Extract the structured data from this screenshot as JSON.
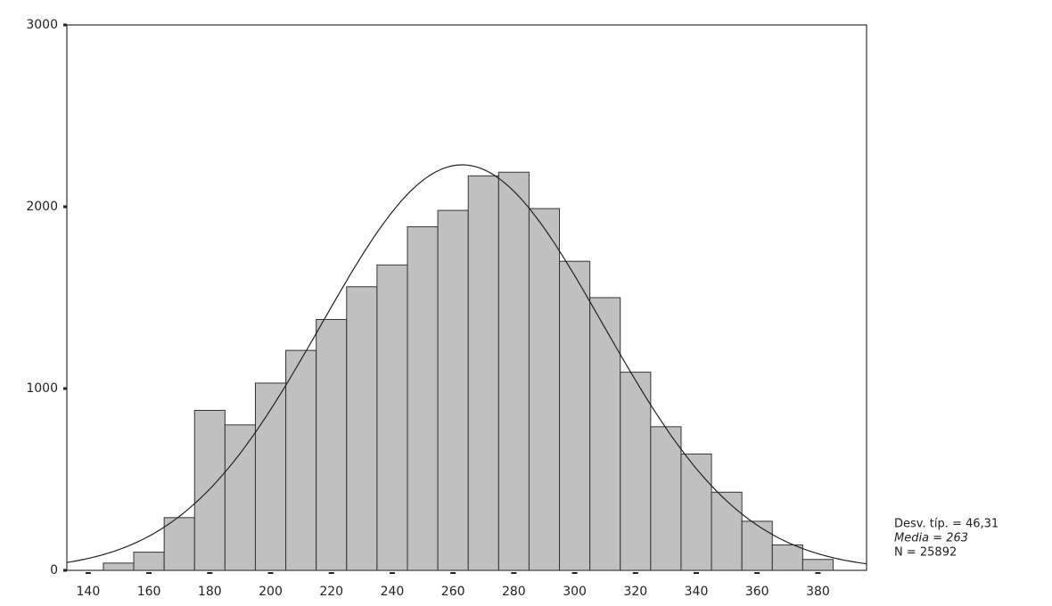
{
  "chart_data": {
    "type": "histogram",
    "bins": [
      145,
      155,
      165,
      175,
      185,
      195,
      205,
      215,
      225,
      235,
      245,
      255,
      265,
      275,
      285,
      295,
      305,
      315,
      325,
      335,
      345,
      355,
      365,
      375,
      385
    ],
    "values": [
      40,
      100,
      290,
      880,
      800,
      1030,
      1210,
      1380,
      1560,
      1680,
      1890,
      1980,
      2170,
      2190,
      1990,
      1700,
      1500,
      1090,
      790,
      640,
      430,
      270,
      140,
      60
    ],
    "color": "#c0c0c0",
    "xlim": [
      133,
      396
    ],
    "xticks": [
      140,
      160,
      180,
      200,
      220,
      240,
      260,
      280,
      300,
      320,
      340,
      360,
      380
    ],
    "ylim": [
      0,
      3000
    ],
    "yticks": [
      0,
      1000,
      2000,
      3000
    ],
    "normal_curve": true,
    "stats": [
      {
        "text": "Desv. típ. = 46,31",
        "value": 46.31
      },
      {
        "text": "Media = 263",
        "value": 263
      },
      {
        "text": "N = 25892",
        "value": 25892
      }
    ]
  }
}
